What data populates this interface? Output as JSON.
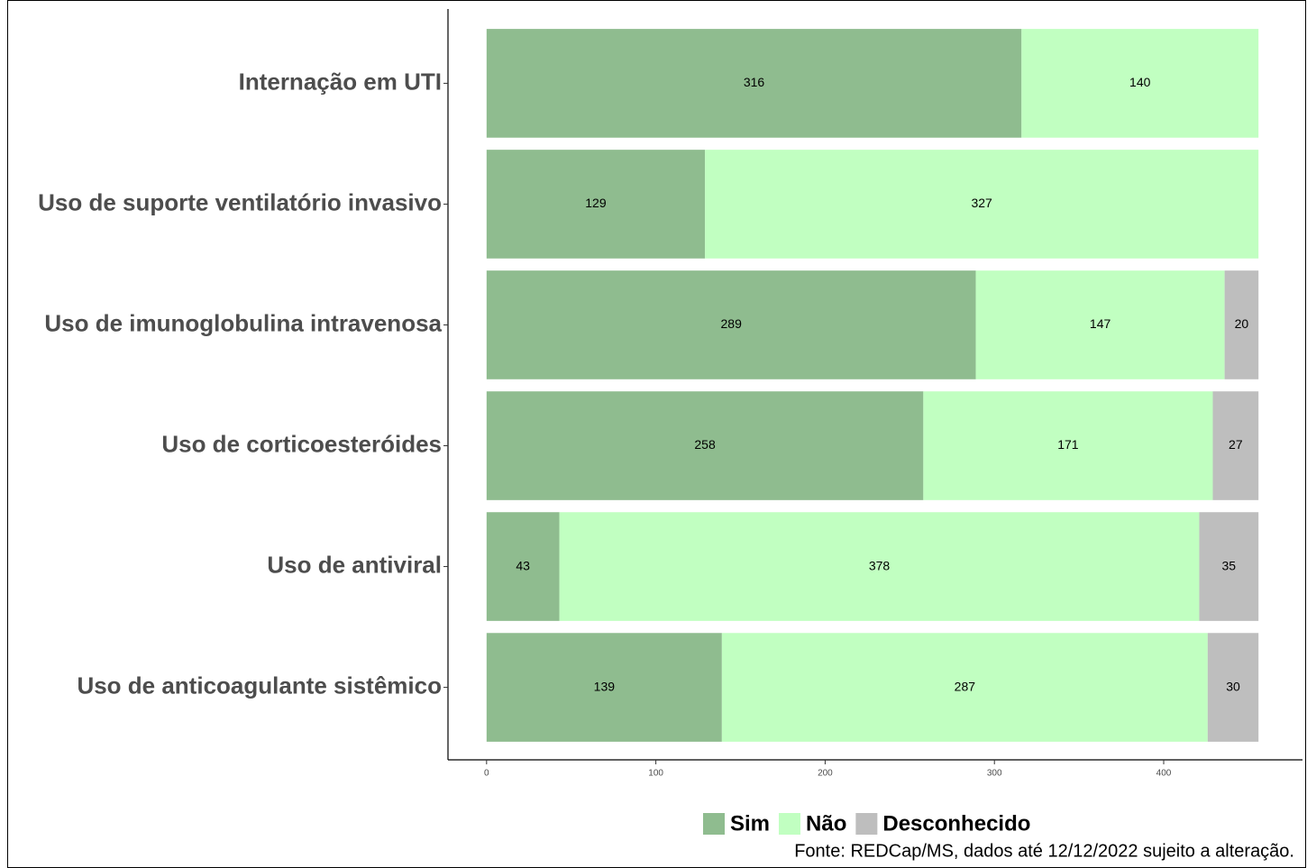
{
  "chart_data": {
    "type": "stacked-barh",
    "categories": [
      "Internação em UTI",
      "Uso de suporte ventilatório invasivo",
      "Uso de imunoglobulina intravenosa",
      "Uso de corticoesteróides",
      "Uso de antiviral",
      "Uso de anticoagulante sistêmico"
    ],
    "series": [
      {
        "name": "Sim",
        "color": "#8fbc8f",
        "values": [
          316,
          129,
          289,
          258,
          43,
          139
        ]
      },
      {
        "name": "Não",
        "color": "#c1ffc1",
        "values": [
          140,
          327,
          147,
          171,
          378,
          287
        ]
      },
      {
        "name": "Desconhecido",
        "color": "#bebebe",
        "values": [
          null,
          null,
          20,
          27,
          35,
          30
        ]
      }
    ],
    "xlim": [
      -22.8,
      478.8
    ],
    "xticks": [
      0,
      100,
      200,
      300,
      400
    ],
    "legend": "bottom",
    "annotation": "Fonte: REDCap/MS, dados até 12/12/2022 sujeito a alteração."
  }
}
